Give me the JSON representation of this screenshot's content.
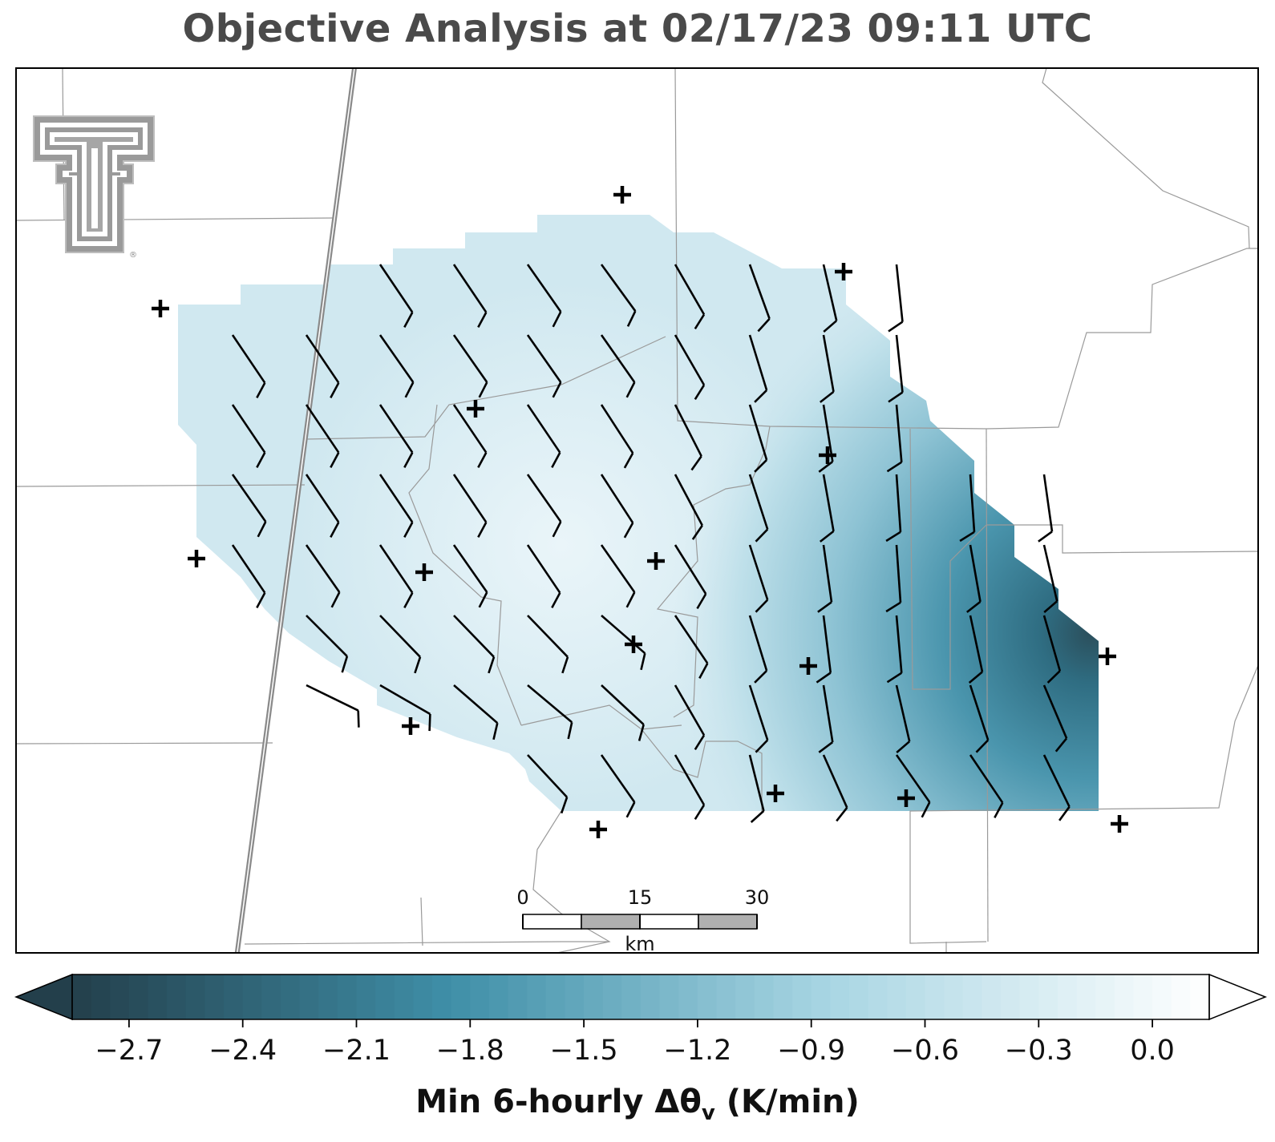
{
  "title": "Objective Analysis at 02/17/23 09:11 UTC",
  "colorbar": {
    "label_main": "Min 6-hourly Δθ",
    "label_sub": "v",
    "label_units": " (K/min)",
    "ticks": [
      "−2.7",
      "−2.4",
      "−2.1",
      "−1.8",
      "−1.5",
      "−1.2",
      "−0.9",
      "−0.6",
      "−0.3",
      "0.0"
    ],
    "tick_values": [
      -2.7,
      -2.4,
      -2.1,
      -1.8,
      -1.5,
      -1.2,
      -0.9,
      -0.6,
      -0.3,
      0.0
    ],
    "range": [
      -2.85,
      0.15
    ],
    "extend": "both",
    "colors": [
      "#233f4b",
      "#3f8fa8",
      "#a9d6e3",
      "#ffffff"
    ]
  },
  "scale_bar": {
    "labels": [
      "0",
      "15",
      "30"
    ],
    "unit": "km"
  },
  "logo": {
    "name": "double-t-logo",
    "mark": "®"
  },
  "station_markers": {
    "symbol": "+"
  },
  "wind_barbs": {
    "units": "kt",
    "typical_speed": 10,
    "direction_from_deg_range": [
      150,
      180
    ]
  }
}
